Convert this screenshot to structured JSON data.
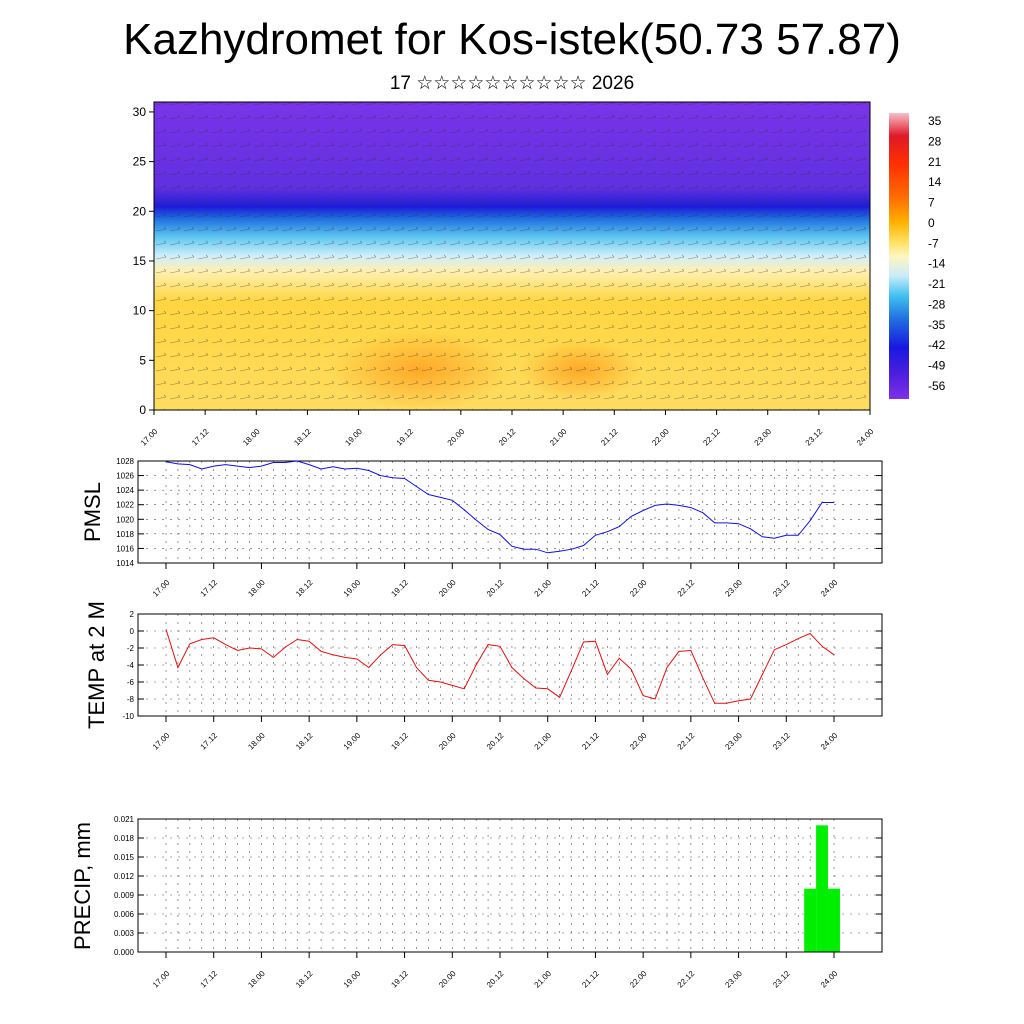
{
  "header": {
    "title": "Kazhydromet for Kos-istek(50.73 57.87)",
    "subtitle": "17 ☆☆☆☆☆☆☆☆☆☆ 2026"
  },
  "colors": {
    "pmsl_line": "#1010e0",
    "temp_line": "#e01010",
    "precip_bar": "#00ee00"
  },
  "chart_data": [
    {
      "type": "heatmap",
      "name": "cross-section",
      "title": "",
      "ylabel": "",
      "ylim": [
        0,
        31
      ],
      "yticks": [
        "0",
        "5",
        "10",
        "15",
        "20",
        "25",
        "30"
      ],
      "ytick_values": [
        0,
        5,
        10,
        15,
        20,
        25,
        30
      ],
      "xtick_labels": [
        "17.00",
        "17.12",
        "18.00",
        "18.12",
        "19.00",
        "19.12",
        "20.00",
        "20.12",
        "21.00",
        "21.12",
        "22.00",
        "22.12",
        "23.00",
        "23.12",
        "24.00"
      ],
      "colorbar_labels": [
        "35",
        "28",
        "21",
        "14",
        "7",
        "0",
        "-7",
        "-14",
        "-21",
        "-28",
        "-35",
        "-42",
        "-49",
        "-56"
      ],
      "colorbar_values": [
        35,
        28,
        21,
        14,
        7,
        0,
        -7,
        -14,
        -21,
        -28,
        -35,
        -42,
        -49,
        -56
      ]
    },
    {
      "type": "line",
      "name": "pmsl",
      "ylabel": "PMSL",
      "ylim": [
        1014,
        1028
      ],
      "yticks": [
        "1014",
        "1016",
        "1018",
        "1020",
        "1022",
        "1024",
        "1026",
        "1028"
      ],
      "ytick_values": [
        1014,
        1016,
        1018,
        1020,
        1022,
        1024,
        1026,
        1028
      ],
      "xtick_labels": [
        "17.00",
        "17.12",
        "18.00",
        "18.12",
        "19.00",
        "19.12",
        "20.00",
        "20.12",
        "21.00",
        "21.12",
        "22.00",
        "22.12",
        "23.00",
        "23.12",
        "24.00"
      ],
      "x": [
        0,
        3,
        6,
        9,
        12,
        15,
        18,
        21,
        24,
        27,
        30,
        33,
        36,
        39,
        42,
        45,
        48,
        51,
        54,
        57,
        60,
        63,
        66,
        69,
        72,
        75,
        78,
        81,
        84,
        87,
        90,
        93,
        96,
        99,
        102,
        105,
        108,
        111,
        114,
        117,
        120,
        123,
        126,
        129,
        132,
        135,
        138,
        141,
        144,
        147,
        150,
        153,
        156,
        159,
        162,
        165,
        168
      ],
      "values": [
        1027.9,
        1027.6,
        1027.5,
        1026.9,
        1027.3,
        1027.5,
        1027.3,
        1027.1,
        1027.3,
        1027.8,
        1027.8,
        1028.0,
        1027.5,
        1026.9,
        1027.2,
        1026.9,
        1027.0,
        1026.7,
        1026.0,
        1025.7,
        1025.6,
        1024.5,
        1023.4,
        1023.0,
        1022.6,
        1021.3,
        1019.9,
        1018.6,
        1017.9,
        1016.3,
        1015.9,
        1015.9,
        1015.4,
        1015.6,
        1015.9,
        1016.4,
        1017.8,
        1018.3,
        1019.0,
        1020.4,
        1021.2,
        1021.9,
        1022.1,
        1021.9,
        1021.6,
        1020.9,
        1019.5,
        1019.5,
        1019.4,
        1018.7,
        1017.6,
        1017.4,
        1017.8,
        1017.8,
        1019.8,
        1022.3,
        1022.3
      ]
    },
    {
      "type": "line",
      "name": "temperature",
      "ylabel": "TEMP at 2 M",
      "ylim": [
        -10,
        2
      ],
      "yticks": [
        "-10",
        "-8",
        "-6",
        "-4",
        "-2",
        "0",
        "2"
      ],
      "ytick_values": [
        -10,
        -8,
        -6,
        -4,
        -2,
        0,
        2
      ],
      "xtick_labels": [
        "17.00",
        "17.12",
        "18.00",
        "18.12",
        "19.00",
        "19.12",
        "20.00",
        "20.12",
        "21.00",
        "21.12",
        "22.00",
        "22.12",
        "23.00",
        "23.12",
        "24.00"
      ],
      "x": [
        0,
        3,
        6,
        9,
        12,
        15,
        18,
        21,
        24,
        27,
        30,
        33,
        36,
        39,
        42,
        45,
        48,
        51,
        54,
        57,
        60,
        63,
        66,
        69,
        72,
        75,
        78,
        81,
        84,
        87,
        90,
        93,
        96,
        99,
        102,
        105,
        108,
        111,
        114,
        117,
        120,
        123,
        126,
        129,
        132,
        135,
        138,
        141,
        144,
        147,
        150,
        153,
        156,
        159,
        162,
        165,
        168
      ],
      "values": [
        0.2,
        -4.3,
        -1.5,
        -1.0,
        -0.8,
        -1.6,
        -2.3,
        -2.0,
        -2.1,
        -3.1,
        -1.9,
        -1.0,
        -1.2,
        -2.4,
        -2.8,
        -3.1,
        -3.3,
        -4.3,
        -2.8,
        -1.6,
        -1.7,
        -4.3,
        -5.8,
        -6.0,
        -6.4,
        -6.8,
        -4.0,
        -1.6,
        -1.8,
        -4.3,
        -5.6,
        -6.7,
        -6.8,
        -7.8,
        -4.6,
        -1.3,
        -1.2,
        -5.1,
        -3.2,
        -4.5,
        -7.6,
        -8.0,
        -4.3,
        -2.4,
        -2.3,
        -5.5,
        -8.5,
        -8.5,
        -8.2,
        -8.0,
        -5.1,
        -2.2,
        -1.6,
        -0.9,
        -0.3,
        -1.8,
        -2.8
      ]
    },
    {
      "type": "bar",
      "name": "precipitation",
      "ylabel": "PRECIP, mm",
      "ylim": [
        0,
        0.021
      ],
      "yticks": [
        "0.000",
        "0.003",
        "0.006",
        "0.009",
        "0.012",
        "0.015",
        "0.018",
        "0.021"
      ],
      "ytick_values": [
        0,
        0.003,
        0.006,
        0.009,
        0.012,
        0.015,
        0.018,
        0.021
      ],
      "xtick_labels": [
        "17.00",
        "17.12",
        "18.00",
        "18.12",
        "19.00",
        "19.12",
        "20.00",
        "20.12",
        "21.00",
        "21.12",
        "22.00",
        "22.12",
        "23.00",
        "23.12",
        "24.00"
      ],
      "bars": [
        {
          "x_start": 160.5,
          "x_end": 163.5,
          "value": 0.01
        },
        {
          "x_start": 163.5,
          "x_end": 166.5,
          "value": 0.02
        },
        {
          "x_start": 166.5,
          "x_end": 169.5,
          "value": 0.01
        }
      ]
    }
  ]
}
